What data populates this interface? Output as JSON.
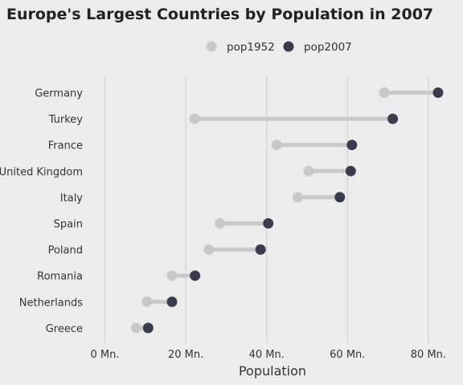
{
  "chart_data": {
    "type": "dumbbell",
    "title": "Europe's Largest Countries by Population in 2007",
    "xlabel": "Population",
    "ylabel": "",
    "xlim": [
      0,
      85
    ],
    "xticks": [
      0,
      20,
      40,
      60,
      80
    ],
    "xtick_labels": [
      "0 Mn.",
      "20 Mn.",
      "40 Mn.",
      "60 Mn.",
      "80 Mn."
    ],
    "grid": "vertical",
    "legend": {
      "placement": "top-center",
      "entries": [
        {
          "name": "pop1952",
          "color": "#c8c8c8"
        },
        {
          "name": "pop2007",
          "color": "#3a3c4e"
        }
      ]
    },
    "categories": [
      "Germany",
      "Turkey",
      "France",
      "United Kingdom",
      "Italy",
      "Spain",
      "Poland",
      "Romania",
      "Netherlands",
      "Greece"
    ],
    "series": [
      {
        "name": "pop1952",
        "color": "#c8c8c8",
        "values": [
          69.1,
          22.2,
          42.5,
          50.4,
          47.7,
          28.5,
          25.7,
          16.6,
          10.4,
          7.7
        ]
      },
      {
        "name": "pop2007",
        "color": "#3a3c4e",
        "values": [
          82.4,
          71.2,
          61.1,
          60.8,
          58.1,
          40.4,
          38.5,
          22.3,
          16.6,
          10.7
        ]
      }
    ]
  }
}
